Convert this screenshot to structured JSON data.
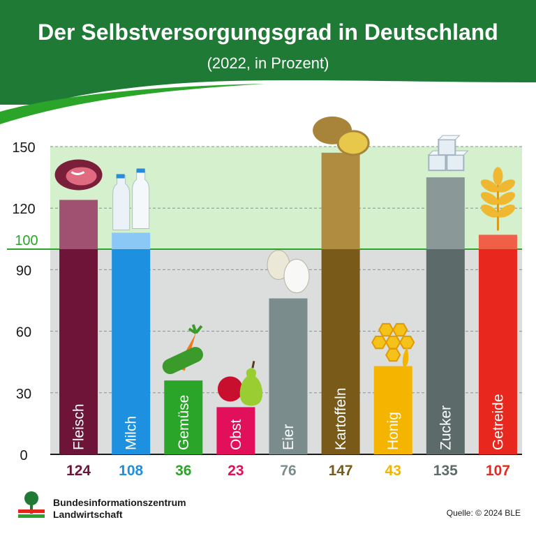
{
  "header": {
    "title": "Der Selbstversorgungsgrad in Deutschland",
    "subtitle": "(2022, in Prozent)"
  },
  "chart_data": {
    "type": "bar",
    "title": "Der Selbstversorgungsgrad in Deutschland",
    "subtitle": "(2022, in Prozent)",
    "categories": [
      "Fleisch",
      "Milch",
      "Gemüse",
      "Obst",
      "Eier",
      "Kartoffeln",
      "Honig",
      "Zucker",
      "Getreide"
    ],
    "values": [
      124,
      108,
      36,
      23,
      76,
      147,
      43,
      135,
      107
    ],
    "value_labels": [
      "124",
      "108",
      "36",
      "23",
      "76",
      "147",
      "43",
      "135",
      "107"
    ],
    "colors": [
      "#6e1438",
      "#1e90e0",
      "#2aa52a",
      "#e2105a",
      "#7a8c8c",
      "#7a5a18",
      "#f5b400",
      "#5c6a6a",
      "#e8281e"
    ],
    "upper_colors": [
      "#a05070",
      "#8cc8f5",
      "#2aa52a",
      "#e2105a",
      "#7a8c8c",
      "#b08c40",
      "#f5b400",
      "#8a9898",
      "#f06048"
    ],
    "yticks": [
      0,
      30,
      60,
      90,
      120,
      150
    ],
    "reference_line": {
      "value": 100,
      "label": "100",
      "color": "#2aa52a"
    },
    "ylim": [
      0,
      150
    ],
    "grid": true,
    "xlabel": "",
    "ylabel": ""
  },
  "footer": {
    "org_line1": "Bundesinformationszentrum",
    "org_line2": "Landwirtschaft",
    "source": "Quelle: © 2024 BLE"
  },
  "icons": [
    "meat-icon",
    "milk-bottles-icon",
    "vegetables-icon",
    "fruit-icon",
    "eggs-icon",
    "potatoes-icon",
    "honeycomb-icon",
    "sugar-cubes-icon",
    "wheat-icon",
    "ble-logo-icon"
  ]
}
